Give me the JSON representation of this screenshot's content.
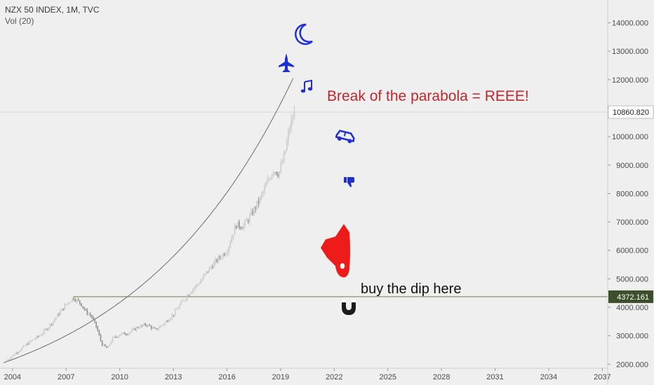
{
  "header": {
    "symbol_line": "NZX 50 INDEX, 1M, TVC",
    "volume_line": "Vol (20)"
  },
  "annotations": {
    "parabola_text": "Break of the parabola = REEE!",
    "dip_text": "buy the dip here"
  },
  "icons": [
    "moon-icon",
    "fighter-jet-icon",
    "music-note-icon",
    "car-icon",
    "thumbs-down-icon",
    "rocket-icon",
    "magnet-icon"
  ],
  "colors": {
    "background": "#efefef",
    "up_candle": "#c8c8c8",
    "down_candle": "#8a8a8a",
    "accent_red": "#c0262d",
    "icon_blue": "#1f2fd6",
    "rocket_red": "#ee1b1b",
    "horizontal_line": "#6e7d4a",
    "current_label_bg": "#ffffff",
    "level_label_bg": "#3d4f2a"
  },
  "chart_data": {
    "type": "candlestick",
    "title": "NZX 50 INDEX, 1M, TVC",
    "x_ticks": [
      "2004",
      "2007",
      "2010",
      "2013",
      "2016",
      "2019",
      "2022",
      "2025",
      "2028",
      "2031",
      "2034",
      "2037"
    ],
    "y_ticks": [
      "2000.000",
      "3000.000",
      "4000.000",
      "5000.000",
      "6000.000",
      "7000.000",
      "8000.000",
      "9000.000",
      "10000.000",
      "11000.000",
      "12000.000",
      "13000.000",
      "14000.000"
    ],
    "y_tick_values": [
      2000,
      3000,
      4000,
      5000,
      6000,
      7000,
      8000,
      9000,
      10000,
      11000,
      12000,
      13000,
      14000
    ],
    "xlim": [
      2003.3,
      2037.3
    ],
    "ylim": [
      1860,
      14800
    ],
    "grid": false,
    "current_price": {
      "value": 10860.82,
      "label": "10860.820"
    },
    "horizontal_level": {
      "value": 4372.161,
      "label": "4372.161"
    },
    "parabola_fit": {
      "vertex_year": 2003.5,
      "base": 2050,
      "target_year": 2019.7,
      "target_value": 12050
    },
    "series": [
      {
        "name": "NZX 50",
        "points": [
          [
            2003.6,
            2100
          ],
          [
            2004.0,
            2300
          ],
          [
            2004.5,
            2550
          ],
          [
            2005.0,
            2800
          ],
          [
            2005.5,
            3000
          ],
          [
            2006.0,
            3300
          ],
          [
            2006.5,
            3700
          ],
          [
            2007.0,
            4100
          ],
          [
            2007.4,
            4340
          ],
          [
            2007.8,
            4150
          ],
          [
            2008.1,
            3850
          ],
          [
            2008.4,
            3700
          ],
          [
            2008.7,
            3300
          ],
          [
            2009.0,
            2700
          ],
          [
            2009.3,
            2550
          ],
          [
            2009.6,
            2900
          ],
          [
            2010.0,
            3050
          ],
          [
            2010.5,
            3100
          ],
          [
            2011.0,
            3300
          ],
          [
            2011.5,
            3400
          ],
          [
            2012.0,
            3200
          ],
          [
            2012.5,
            3450
          ],
          [
            2013.0,
            3750
          ],
          [
            2013.5,
            4200
          ],
          [
            2014.0,
            4600
          ],
          [
            2014.5,
            4900
          ],
          [
            2015.0,
            5350
          ],
          [
            2015.5,
            5700
          ],
          [
            2016.0,
            6000
          ],
          [
            2016.5,
            6900
          ],
          [
            2016.9,
            6850
          ],
          [
            2017.3,
            7200
          ],
          [
            2017.8,
            7750
          ],
          [
            2018.2,
            8300
          ],
          [
            2018.6,
            8850
          ],
          [
            2018.9,
            8700
          ],
          [
            2019.2,
            9300
          ],
          [
            2019.5,
            10300
          ],
          [
            2019.8,
            10860.82
          ]
        ]
      }
    ]
  }
}
